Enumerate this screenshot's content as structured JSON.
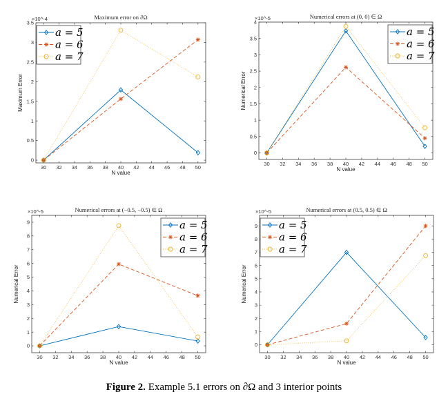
{
  "caption": {
    "label": "Figure 2.",
    "text": "Example 5.1 errors on ∂Ω and 3 interior points"
  },
  "colors": {
    "a5": "#0072BD",
    "a6": "#D95319",
    "a7": "#EDB120"
  },
  "chart_data": [
    {
      "type": "line",
      "title": "Maximum error on ∂Ω",
      "xlabel": "N value",
      "ylabel": "Maximum Error",
      "y_exponent": "×10^-4",
      "x": [
        30,
        40,
        50
      ],
      "xlim": [
        29,
        51
      ],
      "ylim": [
        -0.07,
        3.5
      ],
      "xticks": [
        "30",
        "32",
        "34",
        "36",
        "38",
        "40",
        "42",
        "44",
        "46",
        "48",
        "50"
      ],
      "yticks": [
        "0",
        "0.5",
        "1",
        "1.5",
        "2",
        "2.5",
        "3",
        "3.5"
      ],
      "legend": "top-left",
      "series": [
        {
          "name": "a = 5",
          "values": [
            0,
            1.79,
            0.19
          ],
          "marker": "diamond",
          "style": "solid"
        },
        {
          "name": "a = 6",
          "values": [
            0,
            1.56,
            3.07
          ],
          "marker": "asterisk",
          "style": "dashed"
        },
        {
          "name": "a = 7",
          "values": [
            0,
            3.31,
            2.12
          ],
          "marker": "circle",
          "style": "dotted"
        }
      ]
    },
    {
      "type": "line",
      "title": "Numerical errors at (0, 0) ∈ Ω",
      "xlabel": "N value",
      "ylabel": "Numerical Error",
      "y_exponent": "×10^-5",
      "x": [
        30,
        40,
        50
      ],
      "xlim": [
        29,
        51
      ],
      "ylim": [
        -0.2,
        4
      ],
      "xticks": [
        "30",
        "32",
        "34",
        "36",
        "38",
        "40",
        "42",
        "44",
        "46",
        "48",
        "50"
      ],
      "yticks": [
        "0",
        "0.5",
        "1",
        "1.5",
        "2",
        "2.5",
        "3",
        "3.5",
        "4"
      ],
      "legend": "top-right",
      "series": [
        {
          "name": "a = 5",
          "values": [
            0,
            3.73,
            0.2
          ],
          "marker": "diamond",
          "style": "solid"
        },
        {
          "name": "a = 6",
          "values": [
            0,
            2.62,
            0.45
          ],
          "marker": "asterisk",
          "style": "dashed"
        },
        {
          "name": "a = 7",
          "values": [
            0,
            3.87,
            0.77
          ],
          "marker": "circle",
          "style": "dotted"
        }
      ]
    },
    {
      "type": "line",
      "title": "Numerical errors at (−0.5, −0.5) ∈ Ω",
      "xlabel": "N value",
      "ylabel": "Numerical Error",
      "y_exponent": "×10^-5",
      "x": [
        30,
        40,
        50
      ],
      "xlim": [
        29,
        51
      ],
      "ylim": [
        -0.5,
        9.5
      ],
      "xticks": [
        "30",
        "32",
        "34",
        "36",
        "38",
        "40",
        "42",
        "44",
        "46",
        "48",
        "50"
      ],
      "yticks": [
        "0",
        "1",
        "2",
        "3",
        "4",
        "5",
        "6",
        "7",
        "8",
        "9"
      ],
      "legend": "top-right",
      "series": [
        {
          "name": "a = 5",
          "values": [
            0,
            1.4,
            0.35
          ],
          "marker": "diamond",
          "style": "solid"
        },
        {
          "name": "a = 6",
          "values": [
            0,
            5.95,
            3.65
          ],
          "marker": "asterisk",
          "style": "dashed"
        },
        {
          "name": "a = 7",
          "values": [
            0,
            8.75,
            0.65
          ],
          "marker": "circle",
          "style": "dotted"
        }
      ]
    },
    {
      "type": "line",
      "title": "Numerical errors at (0.5, 0.5) ∈ Ω",
      "xlabel": "N value",
      "ylabel": "Numerical Error",
      "y_exponent": "×10^-5",
      "x": [
        30,
        40,
        50
      ],
      "xlim": [
        29,
        51
      ],
      "ylim": [
        -0.6,
        9.8
      ],
      "xticks": [
        "30",
        "32",
        "34",
        "36",
        "38",
        "40",
        "42",
        "44",
        "46",
        "48",
        "50"
      ],
      "yticks": [
        "0",
        "1",
        "2",
        "3",
        "4",
        "5",
        "6",
        "7",
        "8",
        "9"
      ],
      "legend": "top-left",
      "series": [
        {
          "name": "a = 5",
          "values": [
            0,
            7.0,
            0.55
          ],
          "marker": "diamond",
          "style": "solid"
        },
        {
          "name": "a = 6",
          "values": [
            0,
            1.6,
            9.0
          ],
          "marker": "asterisk",
          "style": "dashed"
        },
        {
          "name": "a = 7",
          "values": [
            0,
            0.3,
            6.75
          ],
          "marker": "circle",
          "style": "dotted"
        }
      ]
    }
  ]
}
